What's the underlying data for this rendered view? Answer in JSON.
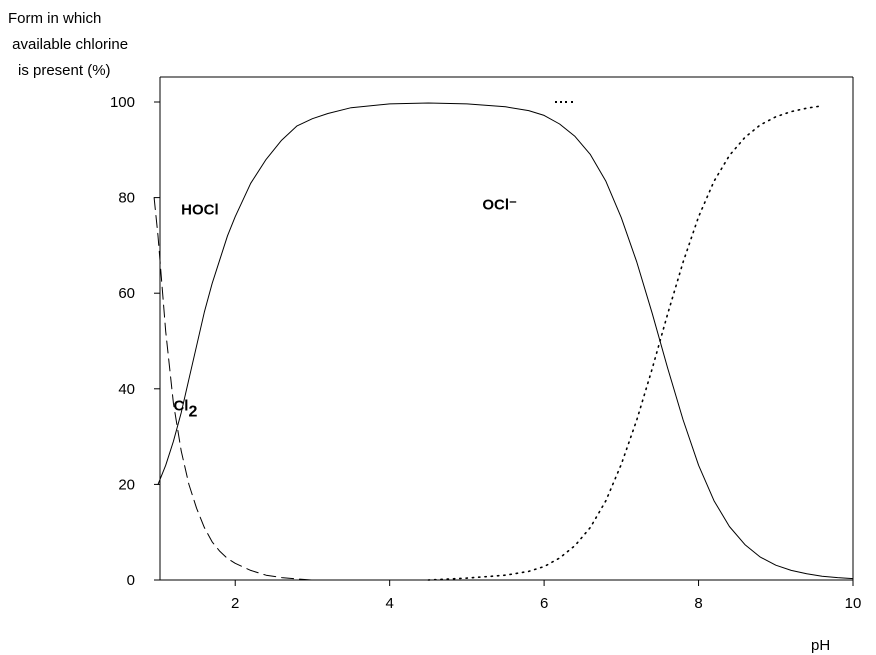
{
  "chart_data": {
    "type": "line",
    "ylabel_lines": [
      "Form in which",
      " available chlorine",
      "is present (%)"
    ],
    "xlabel": "pH",
    "xlim": [
      1,
      10
    ],
    "ylim": [
      0,
      100
    ],
    "xticks": [
      2,
      4,
      6,
      8,
      10
    ],
    "yticks": [
      0,
      20,
      40,
      60,
      80,
      100
    ],
    "grid": false,
    "legend": "none",
    "series": [
      {
        "label": "HOCl",
        "style": "solid",
        "x": [
          1.0,
          1.1,
          1.2,
          1.3,
          1.4,
          1.5,
          1.6,
          1.7,
          1.8,
          1.9,
          2.0,
          2.2,
          2.4,
          2.6,
          2.8,
          3.0,
          3.2,
          3.5,
          4.0,
          4.5,
          5.0,
          5.5,
          5.8,
          6.0,
          6.2,
          6.4,
          6.6,
          6.8,
          7.0,
          7.2,
          7.4,
          7.6,
          7.8,
          8.0,
          8.2,
          8.4,
          8.6,
          8.8,
          9.0,
          9.2,
          9.4,
          9.6,
          9.8,
          10.0
        ],
        "y": [
          20,
          24,
          29,
          35,
          42,
          49,
          56,
          62,
          67,
          72,
          76,
          83,
          88,
          92,
          95,
          96.5,
          97.6,
          98.8,
          99.6,
          99.8,
          99.6,
          99.0,
          98.2,
          97.2,
          95.4,
          92.8,
          89.0,
          83.4,
          75.8,
          66.5,
          55.8,
          44.3,
          33.5,
          24.0,
          16.6,
          11.2,
          7.4,
          4.8,
          3.1,
          2.0,
          1.3,
          0.8,
          0.5,
          0.3
        ]
      },
      {
        "label": "OCl⁻",
        "style": "dotted",
        "x": [
          4.5,
          5.0,
          5.5,
          5.8,
          6.0,
          6.2,
          6.4,
          6.6,
          6.8,
          7.0,
          7.2,
          7.4,
          7.6,
          7.8,
          8.0,
          8.2,
          8.4,
          8.6,
          8.8,
          9.0,
          9.2,
          9.4,
          9.6
        ],
        "y": [
          0,
          0.4,
          1.0,
          1.8,
          2.8,
          4.6,
          7.2,
          11.0,
          16.6,
          24.2,
          33.5,
          44.2,
          55.7,
          66.5,
          76.0,
          83.4,
          88.8,
          92.6,
          95.2,
          96.9,
          98.0,
          98.7,
          99.2
        ]
      },
      {
        "label": "Cl2",
        "style": "dashed",
        "x": [
          0.95,
          1.0,
          1.1,
          1.2,
          1.3,
          1.4,
          1.5,
          1.6,
          1.7,
          1.8,
          1.9,
          2.0,
          2.2,
          2.4,
          2.6,
          2.8,
          3.0
        ],
        "y": [
          80,
          72,
          52,
          37,
          27,
          20,
          15,
          11,
          8,
          6,
          4.5,
          3.5,
          2,
          1,
          0.5,
          0.2,
          0
        ]
      }
    ],
    "annotations": [
      {
        "text": "HOCl",
        "x": 1.3,
        "y": 76.5
      },
      {
        "text": "OCl⁻",
        "x": 5.2,
        "y": 77.5
      },
      {
        "text": "Cl",
        "sub": "2",
        "x": 1.2,
        "y": 35.5
      }
    ]
  }
}
